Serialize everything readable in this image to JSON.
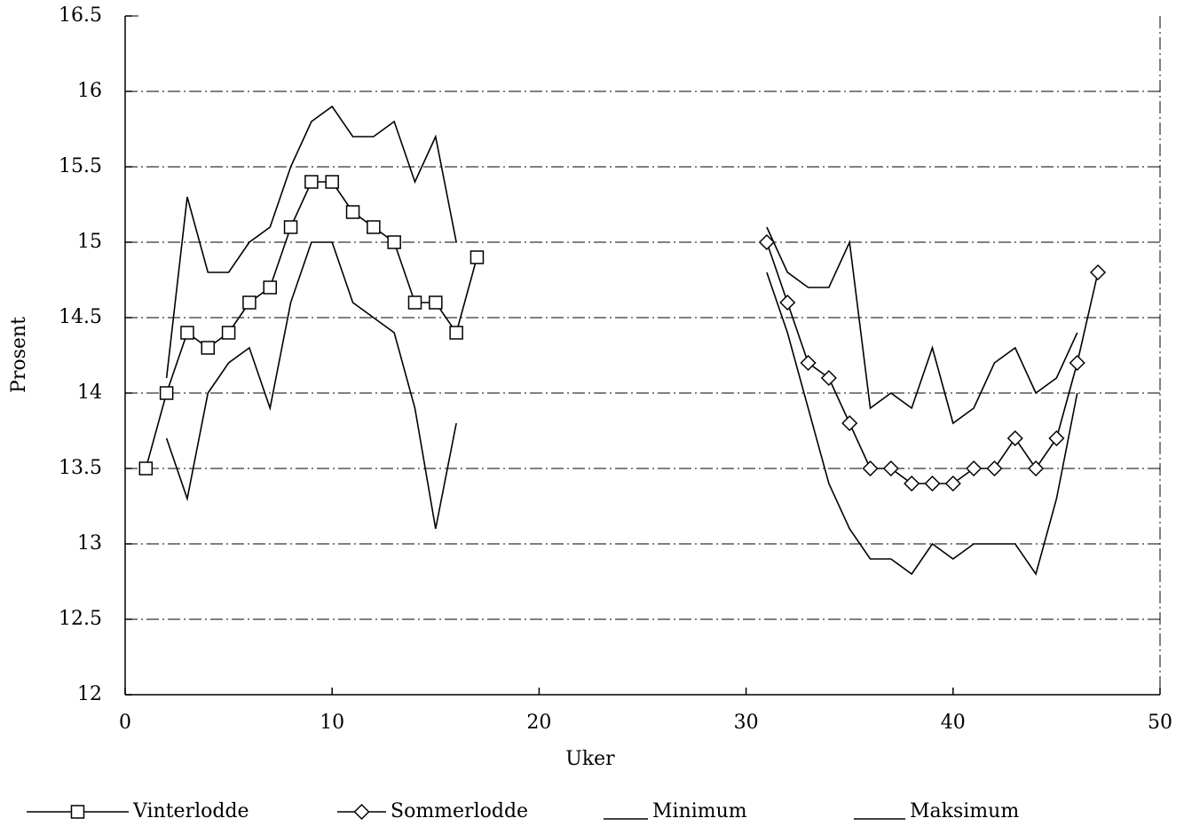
{
  "chart_data": {
    "type": "line",
    "xlabel": "Uker",
    "ylabel": "Prosent",
    "x": [
      1,
      2,
      3,
      4,
      5,
      6,
      7,
      8,
      9,
      10,
      11,
      12,
      13,
      14,
      15,
      16,
      17,
      18,
      19,
      20,
      21,
      22,
      23,
      24,
      25,
      26,
      27,
      28,
      29,
      30,
      31,
      32,
      33,
      34,
      35,
      36,
      37,
      38,
      39,
      40,
      41,
      42,
      43,
      44,
      45,
      46,
      47
    ],
    "series": [
      {
        "name": "Vinterlodde",
        "color": "#000000",
        "marker": "square",
        "values": [
          13.5,
          14.0,
          14.4,
          14.3,
          14.4,
          14.6,
          14.7,
          15.1,
          15.4,
          15.4,
          15.2,
          15.1,
          15.0,
          14.6,
          14.6,
          14.4,
          14.9,
          null,
          null,
          null,
          null,
          null,
          null,
          null,
          null,
          null,
          null,
          null,
          null,
          null,
          null,
          null,
          null,
          null,
          null,
          null,
          null,
          null,
          null,
          null,
          null,
          null,
          null,
          null,
          null,
          null,
          null
        ]
      },
      {
        "name": "Sommerlodde",
        "color": "#000000",
        "marker": "diamond",
        "values": [
          null,
          null,
          null,
          null,
          null,
          null,
          null,
          null,
          null,
          null,
          null,
          null,
          null,
          null,
          null,
          null,
          null,
          null,
          null,
          null,
          null,
          null,
          null,
          null,
          null,
          null,
          null,
          null,
          null,
          null,
          15.0,
          14.6,
          14.2,
          14.1,
          13.8,
          13.5,
          13.5,
          13.4,
          13.4,
          13.4,
          13.5,
          13.5,
          13.7,
          13.5,
          13.7,
          14.2,
          14.8
        ]
      },
      {
        "name": "Minimum",
        "color": "#000000",
        "marker": "none",
        "values": [
          null,
          13.7,
          13.3,
          14.0,
          14.2,
          14.3,
          13.9,
          14.6,
          15.0,
          15.0,
          14.6,
          14.5,
          14.4,
          13.9,
          13.1,
          13.8,
          null,
          null,
          null,
          null,
          null,
          null,
          null,
          null,
          null,
          null,
          null,
          null,
          null,
          null,
          14.8,
          14.4,
          13.9,
          13.4,
          13.1,
          12.9,
          12.9,
          12.8,
          13.0,
          12.9,
          13.0,
          13.0,
          13.0,
          12.8,
          13.3,
          14.0,
          null
        ]
      },
      {
        "name": "Maksimum",
        "color": "#000000",
        "marker": "none",
        "values": [
          null,
          14.1,
          15.3,
          14.8,
          14.8,
          15.0,
          15.1,
          15.5,
          15.8,
          15.9,
          15.7,
          15.7,
          15.8,
          15.4,
          15.7,
          15.0,
          null,
          null,
          null,
          null,
          null,
          null,
          null,
          null,
          null,
          null,
          null,
          null,
          null,
          null,
          15.1,
          14.8,
          14.7,
          14.7,
          15.0,
          13.9,
          14.0,
          13.9,
          14.3,
          13.8,
          13.9,
          14.2,
          14.3,
          14.0,
          14.1,
          14.4,
          null
        ]
      }
    ],
    "xlim": [
      0,
      50
    ],
    "xticks": [
      0,
      10,
      20,
      30,
      40,
      50
    ],
    "ylim": [
      12,
      16.5
    ],
    "yticks": [
      12,
      12.5,
      13,
      13.5,
      14,
      14.5,
      15,
      15.5,
      16,
      16.5
    ],
    "grid": true,
    "legend": "bottom"
  }
}
